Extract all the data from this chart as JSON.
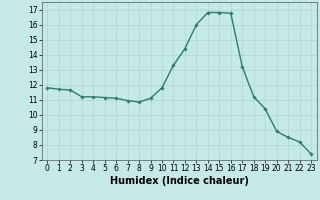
{
  "x": [
    0,
    1,
    2,
    3,
    4,
    5,
    6,
    7,
    8,
    9,
    10,
    11,
    12,
    13,
    14,
    15,
    16,
    17,
    18,
    19,
    20,
    21,
    22,
    23
  ],
  "y": [
    11.8,
    11.7,
    11.65,
    11.2,
    11.2,
    11.15,
    11.1,
    10.95,
    10.85,
    11.1,
    11.8,
    13.3,
    14.4,
    16.0,
    16.8,
    16.8,
    16.75,
    13.2,
    11.2,
    10.4,
    8.9,
    8.5,
    8.2,
    7.4
  ],
  "line_color": "#2e7d6e",
  "marker": "D",
  "marker_size": 1.8,
  "line_width": 1.0,
  "xlabel": "Humidex (Indice chaleur)",
  "xlabel_fontsize": 7,
  "xlabel_fontweight": "bold",
  "xlim": [
    -0.5,
    23.5
  ],
  "ylim": [
    7,
    17.5
  ],
  "yticks": [
    7,
    8,
    9,
    10,
    11,
    12,
    13,
    14,
    15,
    16,
    17
  ],
  "xticks": [
    0,
    1,
    2,
    3,
    4,
    5,
    6,
    7,
    8,
    9,
    10,
    11,
    12,
    13,
    14,
    15,
    16,
    17,
    18,
    19,
    20,
    21,
    22,
    23
  ],
  "background_color": "#c5e8e8",
  "grid_color": "#aed4d4",
  "tick_fontsize": 5.5,
  "fig_bg_color": "#c5e8e8"
}
